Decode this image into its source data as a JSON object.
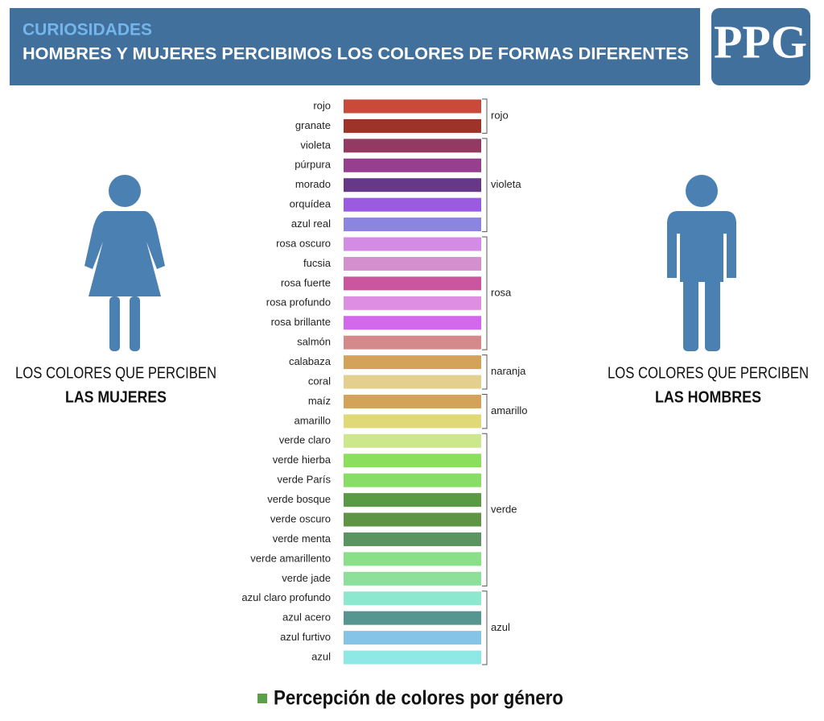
{
  "header": {
    "kicker": "CURIOSIDADES",
    "title": "HOMBRES Y MUJERES PERCIBIMOS LOS COLORES DE FORMAS DIFERENTES",
    "logo": "PPG"
  },
  "women": {
    "line1": "LOS COLORES QUE PERCIBEN",
    "line2": "LAS MUJERES"
  },
  "men": {
    "line1": "LOS COLORES QUE PERCIBEN",
    "line2": "LAS HOMBRES"
  },
  "groups": [
    {
      "name": "rojo",
      "colors": [
        {
          "name": "rojo",
          "color": "#c94a3a"
        },
        {
          "name": "granate",
          "color": "#9e3429"
        }
      ]
    },
    {
      "name": "violeta",
      "colors": [
        {
          "name": "violeta",
          "color": "#923a62"
        },
        {
          "name": "púrpura",
          "color": "#953f8e"
        },
        {
          "name": "morado",
          "color": "#673888"
        },
        {
          "name": "orquídea",
          "color": "#9a5be0"
        },
        {
          "name": "azul real",
          "color": "#8b84e0"
        }
      ]
    },
    {
      "name": "rosa",
      "colors": [
        {
          "name": "rosa oscuro",
          "color": "#d48be6"
        },
        {
          "name": "fucsia",
          "color": "#d48fce"
        },
        {
          "name": "rosa fuerte",
          "color": "#cc55a0"
        },
        {
          "name": "rosa profundo",
          "color": "#df8fe3"
        },
        {
          "name": "rosa brillante",
          "color": "#d368ec"
        },
        {
          "name": "salmón",
          "color": "#d48a8a"
        }
      ]
    },
    {
      "name": "naranja",
      "colors": [
        {
          "name": "calabaza",
          "color": "#d4a35a"
        },
        {
          "name": "coral",
          "color": "#e3d08f"
        }
      ]
    },
    {
      "name": "amarillo",
      "colors": [
        {
          "name": "maíz",
          "color": "#d4a35a"
        },
        {
          "name": "amarillo",
          "color": "#e0d977"
        }
      ]
    },
    {
      "name": "verde",
      "colors": [
        {
          "name": "verde claro",
          "color": "#cde88c"
        },
        {
          "name": "verde hierba",
          "color": "#8ae05c"
        },
        {
          "name": "verde París",
          "color": "#88dd66"
        },
        {
          "name": "verde bosque",
          "color": "#5b9a44"
        },
        {
          "name": "verde oscuro",
          "color": "#5e9444"
        },
        {
          "name": "verde menta",
          "color": "#5a9460"
        },
        {
          "name": "verde amarillento",
          "color": "#89e089"
        },
        {
          "name": "verde jade",
          "color": "#8de09a"
        }
      ]
    },
    {
      "name": "azul",
      "colors": [
        {
          "name": "azul claro profundo",
          "color": "#8de8cf"
        },
        {
          "name": "azul acero",
          "color": "#579690"
        },
        {
          "name": "azul furtivo",
          "color": "#85c4e6"
        },
        {
          "name": "azul",
          "color": "#8de8e6"
        }
      ]
    }
  ],
  "legend": {
    "label": "Percepción de colores por género",
    "color": "#5aa04a"
  }
}
